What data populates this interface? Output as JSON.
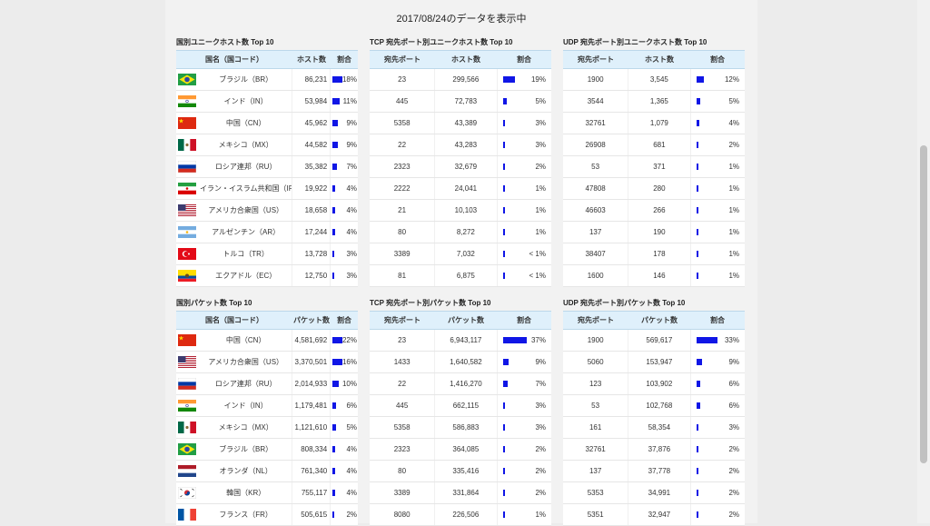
{
  "heading": "2017/08/24のデータを表示中",
  "country_hosts": {
    "title": "国別ユニークホスト数 Top 10",
    "headers": [
      "国名（国コード）",
      "ホスト数",
      "割合"
    ],
    "rows": [
      {
        "flag": "br",
        "country": "ブラジル（BR）",
        "count": "86,231",
        "pct": "18%",
        "frac": 0.18
      },
      {
        "flag": "in",
        "country": "インド（IN）",
        "count": "53,984",
        "pct": "11%",
        "frac": 0.11
      },
      {
        "flag": "cn",
        "country": "中国（CN）",
        "count": "45,962",
        "pct": "9%",
        "frac": 0.09
      },
      {
        "flag": "mx",
        "country": "メキシコ（MX）",
        "count": "44,582",
        "pct": "9%",
        "frac": 0.09
      },
      {
        "flag": "ru",
        "country": "ロシア連邦（RU）",
        "count": "35,382",
        "pct": "7%",
        "frac": 0.07
      },
      {
        "flag": "ir",
        "country": "イラン・イスラム共和国（IR）",
        "count": "19,922",
        "pct": "4%",
        "frac": 0.04
      },
      {
        "flag": "us",
        "country": "アメリカ合衆国（US）",
        "count": "18,658",
        "pct": "4%",
        "frac": 0.04
      },
      {
        "flag": "ar",
        "country": "アルゼンチン（AR）",
        "count": "17,244",
        "pct": "4%",
        "frac": 0.04
      },
      {
        "flag": "tr",
        "country": "トルコ（TR）",
        "count": "13,728",
        "pct": "3%",
        "frac": 0.03
      },
      {
        "flag": "ec",
        "country": "エクアドル（EC）",
        "count": "12,750",
        "pct": "3%",
        "frac": 0.03
      }
    ]
  },
  "tcp_hosts": {
    "title": "TCP 宛先ポート別ユニークホスト数 Top 10",
    "headers": [
      "宛先ポート",
      "ホスト数",
      "割合"
    ],
    "rows": [
      {
        "port": "23",
        "count": "299,566",
        "pct": "19%",
        "frac": 0.19
      },
      {
        "port": "445",
        "count": "72,783",
        "pct": "5%",
        "frac": 0.05
      },
      {
        "port": "5358",
        "count": "43,389",
        "pct": "3%",
        "frac": 0.03
      },
      {
        "port": "22",
        "count": "43,283",
        "pct": "3%",
        "frac": 0.03
      },
      {
        "port": "2323",
        "count": "32,679",
        "pct": "2%",
        "frac": 0.02
      },
      {
        "port": "2222",
        "count": "24,041",
        "pct": "1%",
        "frac": 0.01
      },
      {
        "port": "21",
        "count": "10,103",
        "pct": "1%",
        "frac": 0.01
      },
      {
        "port": "80",
        "count": "8,272",
        "pct": "1%",
        "frac": 0.01
      },
      {
        "port": "3389",
        "count": "7,032",
        "pct": "< 1%",
        "frac": 0.005
      },
      {
        "port": "81",
        "count": "6,875",
        "pct": "< 1%",
        "frac": 0.005
      }
    ]
  },
  "udp_hosts": {
    "title": "UDP 宛先ポート別ユニークホスト数 Top 10",
    "headers": [
      "宛先ポート",
      "ホスト数",
      "割合"
    ],
    "rows": [
      {
        "port": "1900",
        "count": "3,545",
        "pct": "12%",
        "frac": 0.12
      },
      {
        "port": "3544",
        "count": "1,365",
        "pct": "5%",
        "frac": 0.05
      },
      {
        "port": "32761",
        "count": "1,079",
        "pct": "4%",
        "frac": 0.04
      },
      {
        "port": "26908",
        "count": "681",
        "pct": "2%",
        "frac": 0.02
      },
      {
        "port": "53",
        "count": "371",
        "pct": "1%",
        "frac": 0.01
      },
      {
        "port": "47808",
        "count": "280",
        "pct": "1%",
        "frac": 0.01
      },
      {
        "port": "46603",
        "count": "266",
        "pct": "1%",
        "frac": 0.01
      },
      {
        "port": "137",
        "count": "190",
        "pct": "1%",
        "frac": 0.01
      },
      {
        "port": "38407",
        "count": "178",
        "pct": "1%",
        "frac": 0.01
      },
      {
        "port": "1600",
        "count": "146",
        "pct": "1%",
        "frac": 0.01
      }
    ]
  },
  "country_packets": {
    "title": "国別パケット数 Top 10",
    "headers": [
      "国名（国コード）",
      "パケット数",
      "割合"
    ],
    "rows": [
      {
        "flag": "cn",
        "country": "中国（CN）",
        "count": "4,581,692",
        "pct": "22%",
        "frac": 0.22
      },
      {
        "flag": "us",
        "country": "アメリカ合衆国（US）",
        "count": "3,370,501",
        "pct": "16%",
        "frac": 0.16
      },
      {
        "flag": "ru",
        "country": "ロシア連邦（RU）",
        "count": "2,014,933",
        "pct": "10%",
        "frac": 0.1
      },
      {
        "flag": "in",
        "country": "インド（IN）",
        "count": "1,179,481",
        "pct": "6%",
        "frac": 0.06
      },
      {
        "flag": "mx",
        "country": "メキシコ（MX）",
        "count": "1,121,610",
        "pct": "5%",
        "frac": 0.05
      },
      {
        "flag": "br",
        "country": "ブラジル（BR）",
        "count": "808,334",
        "pct": "4%",
        "frac": 0.04
      },
      {
        "flag": "nl",
        "country": "オランダ（NL）",
        "count": "761,340",
        "pct": "4%",
        "frac": 0.04
      },
      {
        "flag": "kr",
        "country": "韓国（KR）",
        "count": "755,117",
        "pct": "4%",
        "frac": 0.04
      },
      {
        "flag": "fr",
        "country": "フランス（FR）",
        "count": "505,615",
        "pct": "2%",
        "frac": 0.02
      }
    ]
  },
  "tcp_packets": {
    "title": "TCP 宛先ポート別パケット数 Top 10",
    "headers": [
      "宛先ポート",
      "パケット数",
      "割合"
    ],
    "rows": [
      {
        "port": "23",
        "count": "6,943,117",
        "pct": "37%",
        "frac": 0.37
      },
      {
        "port": "1433",
        "count": "1,640,582",
        "pct": "9%",
        "frac": 0.09
      },
      {
        "port": "22",
        "count": "1,416,270",
        "pct": "7%",
        "frac": 0.07
      },
      {
        "port": "445",
        "count": "662,115",
        "pct": "3%",
        "frac": 0.03
      },
      {
        "port": "5358",
        "count": "586,883",
        "pct": "3%",
        "frac": 0.03
      },
      {
        "port": "2323",
        "count": "364,085",
        "pct": "2%",
        "frac": 0.02
      },
      {
        "port": "80",
        "count": "335,416",
        "pct": "2%",
        "frac": 0.02
      },
      {
        "port": "3389",
        "count": "331,864",
        "pct": "2%",
        "frac": 0.02
      },
      {
        "port": "8080",
        "count": "226,506",
        "pct": "1%",
        "frac": 0.01
      }
    ]
  },
  "udp_packets": {
    "title": "UDP 宛先ポート別パケット数 Top 10",
    "headers": [
      "宛先ポート",
      "パケット数",
      "割合"
    ],
    "rows": [
      {
        "port": "1900",
        "count": "569,617",
        "pct": "33%",
        "frac": 0.33
      },
      {
        "port": "5060",
        "count": "153,947",
        "pct": "9%",
        "frac": 0.09
      },
      {
        "port": "123",
        "count": "103,902",
        "pct": "6%",
        "frac": 0.06
      },
      {
        "port": "53",
        "count": "102,768",
        "pct": "6%",
        "frac": 0.06
      },
      {
        "port": "161",
        "count": "58,354",
        "pct": "3%",
        "frac": 0.03
      },
      {
        "port": "32761",
        "count": "37,876",
        "pct": "2%",
        "frac": 0.02
      },
      {
        "port": "137",
        "count": "37,778",
        "pct": "2%",
        "frac": 0.02
      },
      {
        "port": "5353",
        "count": "34,991",
        "pct": "2%",
        "frac": 0.02
      },
      {
        "port": "5351",
        "count": "32,947",
        "pct": "2%",
        "frac": 0.02
      }
    ]
  },
  "colors": {
    "bar": "#1016e6",
    "header_bg": "#dff0fb",
    "page_bg": "#f2f2f2"
  }
}
